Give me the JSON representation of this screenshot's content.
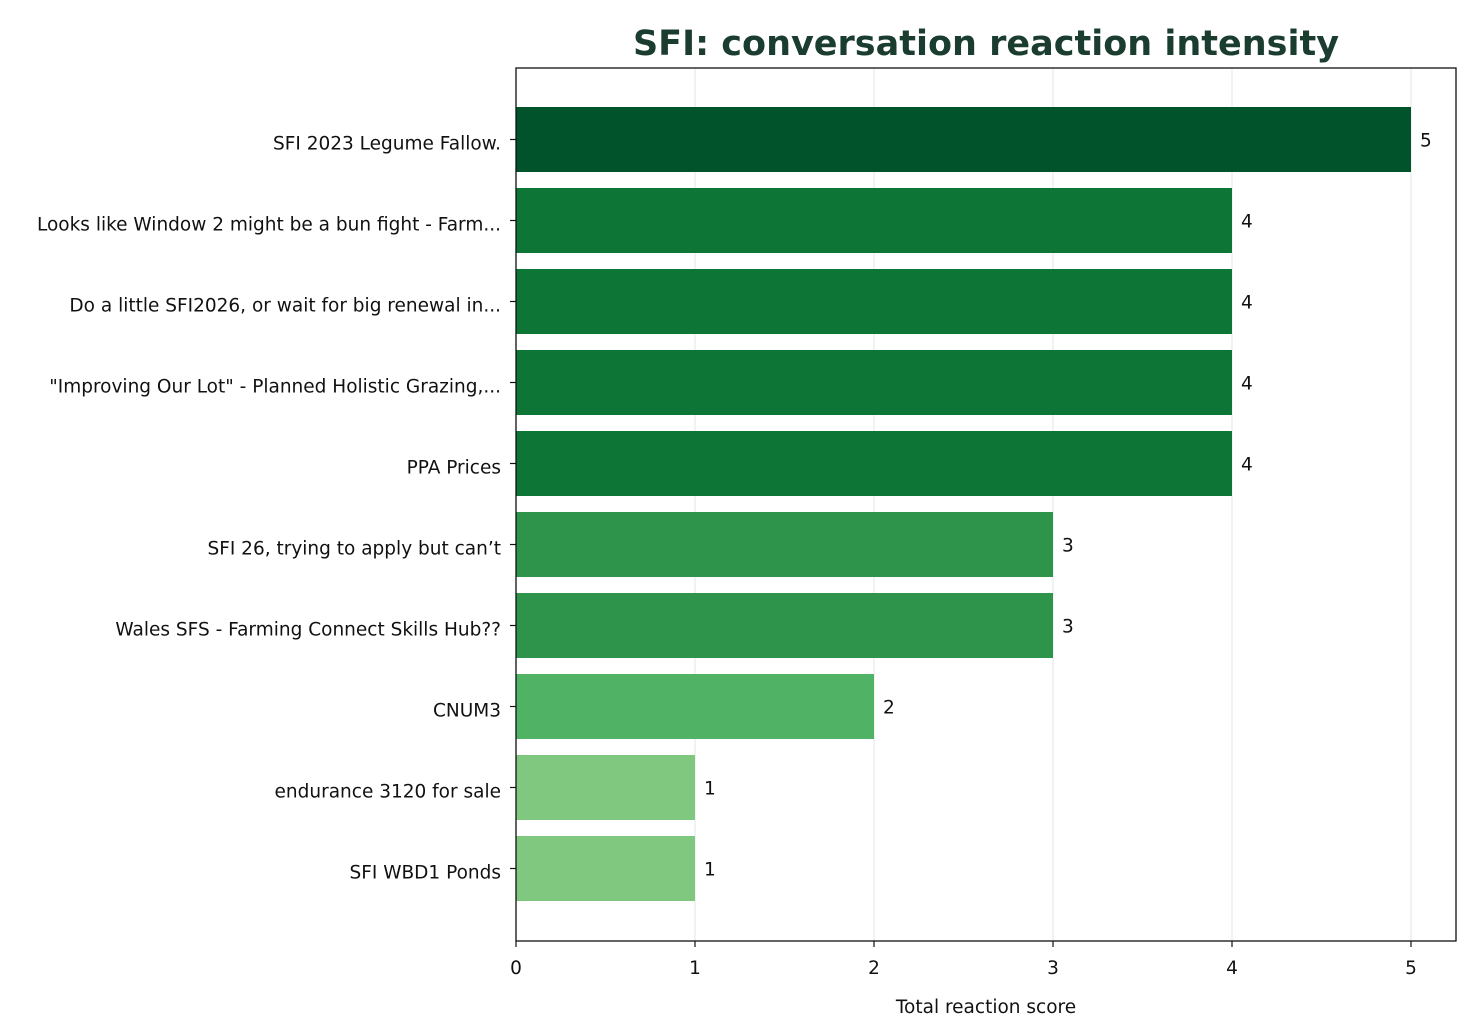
{
  "chart_data": {
    "type": "bar",
    "orientation": "horizontal",
    "title": "SFI: conversation reaction intensity",
    "xlabel": "Total reaction score",
    "ylabel": "",
    "xlim": [
      0,
      5.25
    ],
    "x_ticks": [
      0,
      1,
      2,
      3,
      4,
      5
    ],
    "grid": "vertical",
    "categories": [
      "SFI 2023 Legume Fallow.",
      "Looks like Window 2 might be a bun fight - Farm...",
      "Do a little SFI2026, or wait for big renewal in...",
      "\"Improving Our Lot\" - Planned Holistic Grazing,...",
      "PPA Prices",
      "SFI 26, trying to apply but can’t",
      "Wales SFS - Farming Connect Skills Hub??",
      "CNUM3",
      "endurance 3120 for sale",
      "SFI WBD1 Ponds"
    ],
    "values": [
      5,
      4,
      4,
      4,
      4,
      3,
      3,
      2,
      1,
      1
    ],
    "value_labels": [
      "5",
      "4",
      "4",
      "4",
      "4",
      "3",
      "3",
      "2",
      "1",
      "1"
    ],
    "colors": {
      "5": "#00532a",
      "4": "#0d7536",
      "3": "#2e944c",
      "2": "#50b264",
      "1": "#80c77f",
      "title": "#1b3d2f",
      "grid": "#e8e8e8",
      "axis": "#111111"
    }
  }
}
